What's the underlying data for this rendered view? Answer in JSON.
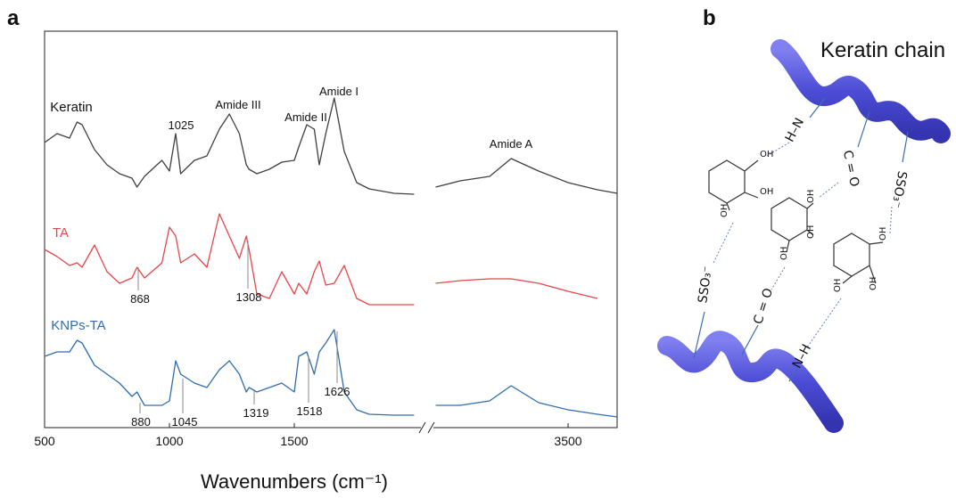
{
  "panel_a": {
    "label": "a"
  },
  "chart_data": {
    "type": "line",
    "xlabel": "Wavenumbers (cm⁻¹)",
    "xlim": [
      500,
      4000
    ],
    "xbreak": [
      2000,
      2100
    ],
    "xticks": [
      500,
      1000,
      1500,
      3500
    ],
    "ylim": [
      0,
      445
    ],
    "x": [
      500,
      550,
      600,
      630,
      650,
      700,
      750,
      800,
      850,
      870,
      900,
      950,
      970,
      1000,
      1025,
      1045,
      1100,
      1150,
      1200,
      1240,
      1280,
      1308,
      1319,
      1350,
      1400,
      1450,
      1500,
      1518,
      1550,
      1580,
      1600,
      1626,
      1660,
      1700,
      1750,
      1800,
      1900,
      1980,
      2050,
      2150,
      2400,
      2700,
      2920,
      3200,
      3500,
      3800,
      4000
    ],
    "series": [
      {
        "name": "Keratin",
        "color": "#404040",
        "values": [
          320,
          330,
          325,
          343,
          340,
          312,
          295,
          285,
          280,
          270,
          282,
          295,
          300,
          288,
          330,
          285,
          300,
          305,
          335,
          352,
          330,
          295,
          290,
          285,
          290,
          298,
          300,
          315,
          340,
          335,
          295,
          330,
          370,
          310,
          275,
          268,
          263,
          262,
          null,
          270,
          277,
          282,
          302,
          288,
          275,
          267,
          263
        ]
      },
      {
        "name": "TA",
        "color": "#e8454a",
        "values": [
          200,
          192,
          182,
          185,
          180,
          205,
          175,
          162,
          168,
          180,
          168,
          180,
          185,
          225,
          215,
          185,
          195,
          180,
          240,
          215,
          190,
          215,
          200,
          150,
          145,
          175,
          150,
          162,
          150,
          175,
          187,
          160,
          162,
          182,
          145,
          138,
          138,
          138,
          null,
          162,
          165,
          167,
          167,
          162,
          153,
          145,
          null
        ]
      },
      {
        "name": "KNPs-TA",
        "color": "#2f6db0",
        "values": [
          80,
          85,
          85,
          98,
          95,
          70,
          60,
          50,
          35,
          40,
          25,
          25,
          25,
          30,
          75,
          60,
          50,
          45,
          65,
          75,
          60,
          40,
          45,
          40,
          45,
          50,
          40,
          80,
          85,
          60,
          85,
          95,
          110,
          40,
          20,
          15,
          14,
          14,
          null,
          25,
          25,
          30,
          47,
          28,
          20,
          15,
          12
        ]
      }
    ],
    "annotations": [
      "1025",
      "Amide III",
      "Amide II",
      "Amide I",
      "Amide A",
      "868",
      "1308",
      "880",
      "1045",
      "1319",
      "1518",
      "1626"
    ]
  },
  "panel_b": {
    "label": "b",
    "title": "Keratin chain",
    "groups": [
      "H–N",
      "C = O",
      "SSO₃⁻",
      "SSO₃⁻",
      "C = O",
      "N–H"
    ],
    "oh": [
      "OH",
      "OH",
      "OH",
      "OH",
      "OH",
      "OH",
      "OH",
      "OH",
      "OH"
    ]
  }
}
